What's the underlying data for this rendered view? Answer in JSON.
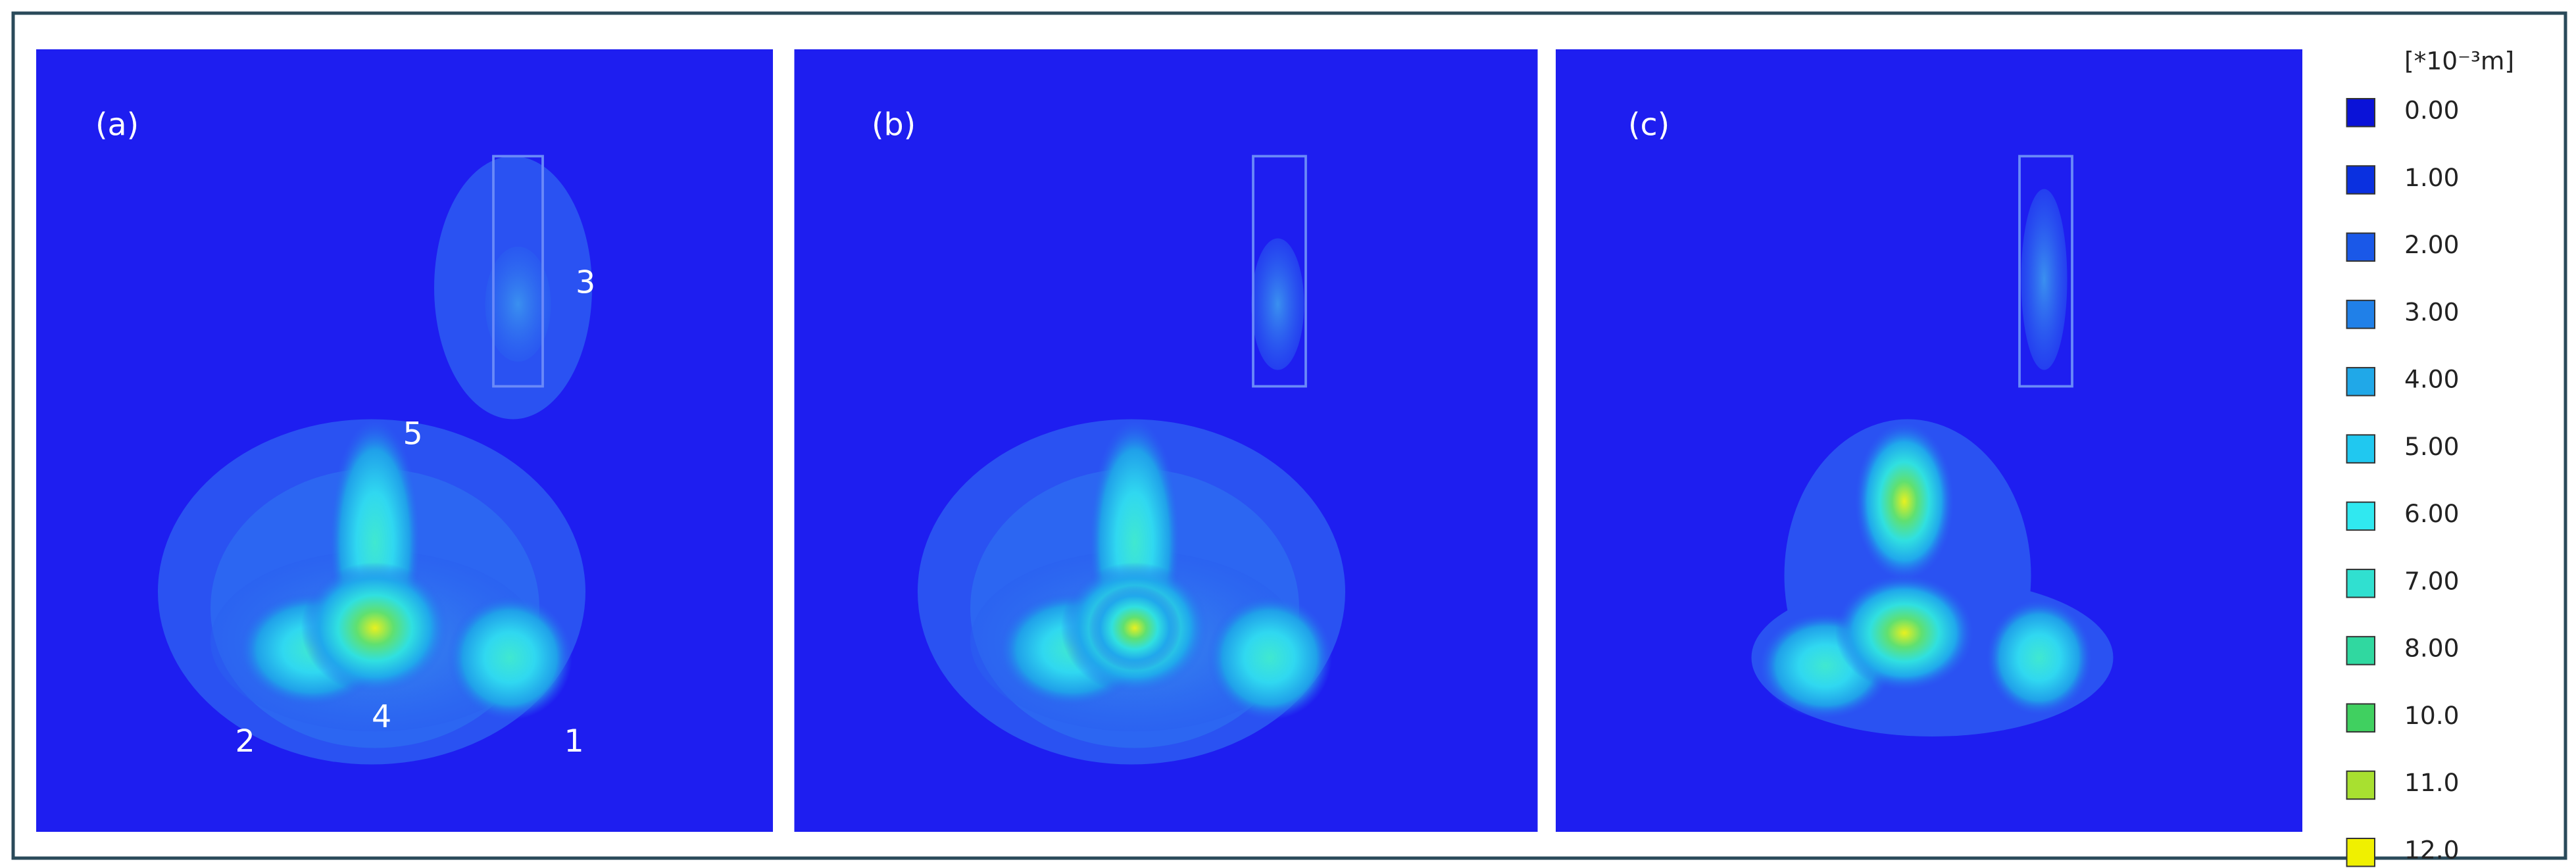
{
  "panels": [
    {
      "label": "(a)",
      "annotations": [
        "1",
        "2",
        "3",
        "4",
        "5"
      ]
    },
    {
      "label": "(b)"
    },
    {
      "label": "(c)"
    }
  ],
  "legend": {
    "unit": "[*10⁻³m]",
    "items": [
      {
        "label": "0.00",
        "color": "#0a12d8"
      },
      {
        "label": "1.00",
        "color": "#0a30e0"
      },
      {
        "label": "2.00",
        "color": "#1a58e8"
      },
      {
        "label": "3.00",
        "color": "#2080e8"
      },
      {
        "label": "4.00",
        "color": "#20a8e8"
      },
      {
        "label": "5.00",
        "color": "#20c8f0"
      },
      {
        "label": "6.00",
        "color": "#30e8f0"
      },
      {
        "label": "7.00",
        "color": "#30e0d0"
      },
      {
        "label": "8.00",
        "color": "#30d8a0"
      },
      {
        "label": "10.0",
        "color": "#40d060"
      },
      {
        "label": "11.0",
        "color": "#a8e030"
      },
      {
        "label": "12.0",
        "color": "#f0f000"
      }
    ]
  }
}
